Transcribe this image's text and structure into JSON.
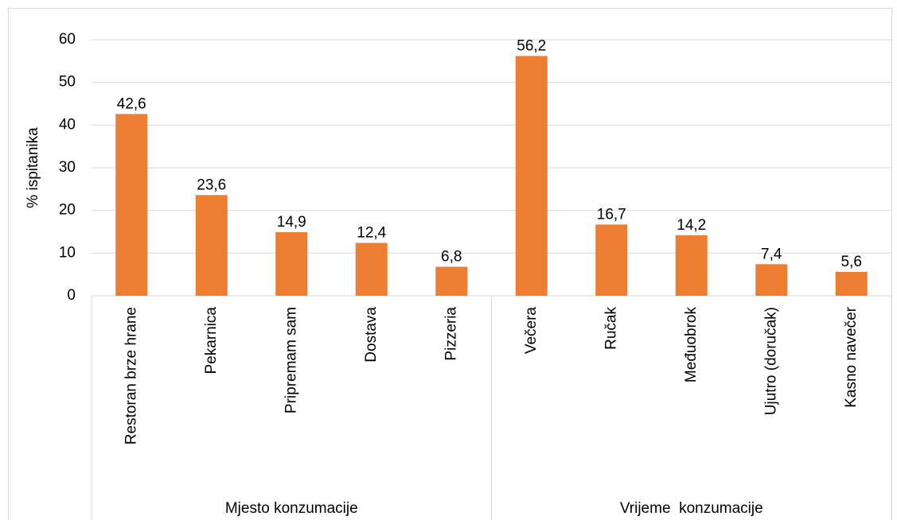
{
  "chart_data": {
    "type": "bar",
    "y_label": "% ispitanika",
    "color": "#ed7d31",
    "ylim": [
      0,
      60
    ],
    "yticks": [
      0,
      10,
      20,
      30,
      40,
      50,
      60
    ],
    "grid": true,
    "groups": [
      {
        "name": "Mjesto konzumacije",
        "categories": [
          "Restoran brze hrane",
          "Pekarnica",
          "Pripremam sam",
          "Dostava",
          "Pizzeria"
        ],
        "values": [
          42.6,
          23.6,
          14.9,
          12.4,
          6.8
        ],
        "value_labels": [
          "42,6",
          "23,6",
          "14,9",
          "12,4",
          "6,8"
        ]
      },
      {
        "name": "Vrijeme  konzumacije",
        "categories": [
          "Večera",
          "Ručak",
          "Međuobrok",
          "Ujutro (doručak)",
          "Kasno navečer"
        ],
        "values": [
          56.2,
          16.7,
          14.2,
          7.4,
          5.6
        ],
        "value_labels": [
          "56,2",
          "16,7",
          "14,2",
          "7,4",
          "5,6"
        ]
      }
    ]
  }
}
